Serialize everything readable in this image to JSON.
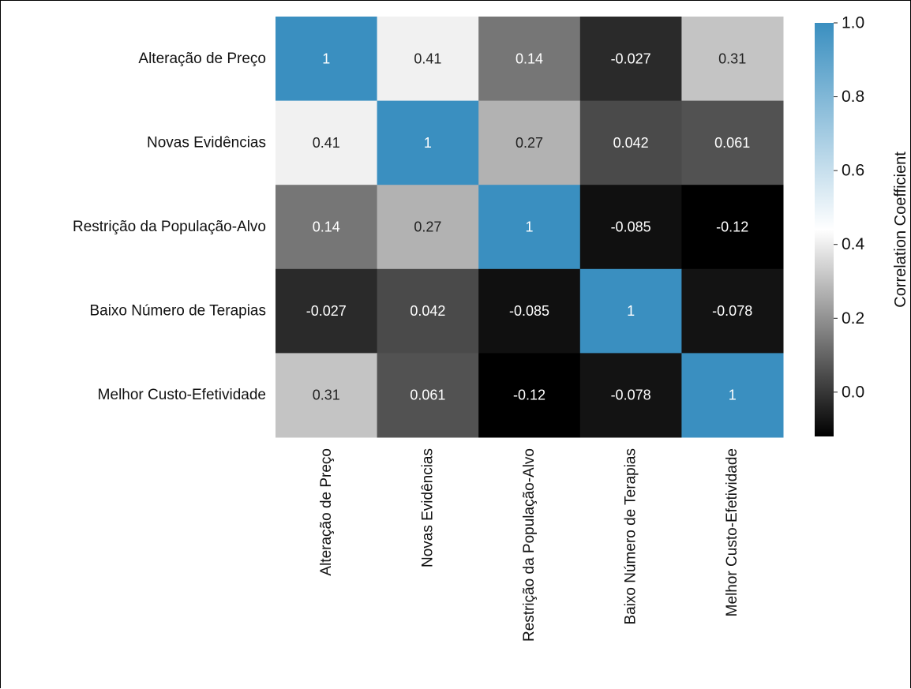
{
  "chart_data": {
    "type": "heatmap",
    "title": "",
    "xlabel": "",
    "ylabel": "",
    "rows": [
      "Alteração de Preço",
      "Novas Evidências",
      "Restrição da População-Alvo",
      "Baixo Número de Terapias",
      "Melhor Custo-Efetividade"
    ],
    "columns": [
      "Alteração de Preço",
      "Novas Evidências",
      "Restrição da População-Alvo",
      "Baixo Número de Terapias",
      "Melhor Custo-Efetividade"
    ],
    "values": [
      [
        1,
        0.41,
        0.14,
        -0.027,
        0.31
      ],
      [
        0.41,
        1,
        0.27,
        0.042,
        0.061
      ],
      [
        0.14,
        0.27,
        1,
        -0.085,
        -0.12
      ],
      [
        -0.027,
        0.042,
        -0.085,
        1,
        -0.078
      ],
      [
        0.31,
        0.061,
        -0.12,
        -0.078,
        1
      ]
    ],
    "annotations": [
      [
        "1",
        "0.41",
        "0.14",
        "-0.027",
        "0.31"
      ],
      [
        "0.41",
        "1",
        "0.27",
        "0.042",
        "0.061"
      ],
      [
        "0.14",
        "0.27",
        "1",
        "-0.085",
        "-0.12"
      ],
      [
        "-0.027",
        "0.042",
        "-0.085",
        "1",
        "-0.078"
      ],
      [
        "0.31",
        "0.061",
        "-0.12",
        "-0.078",
        "1"
      ]
    ],
    "colorbar": {
      "label": "Correlation Coefficient",
      "range": [
        -0.12,
        1.0
      ],
      "ticks": [
        1.0,
        0.8,
        0.6,
        0.4,
        0.2,
        0.0
      ],
      "tick_labels": [
        "1.0",
        "0.8",
        "0.6",
        "0.4",
        "0.2",
        "0.0"
      ],
      "colors": [
        "#000000",
        "#ffffff",
        "#3a8fc0"
      ],
      "center": 0.44
    },
    "grid": false,
    "legend_position": "right"
  }
}
